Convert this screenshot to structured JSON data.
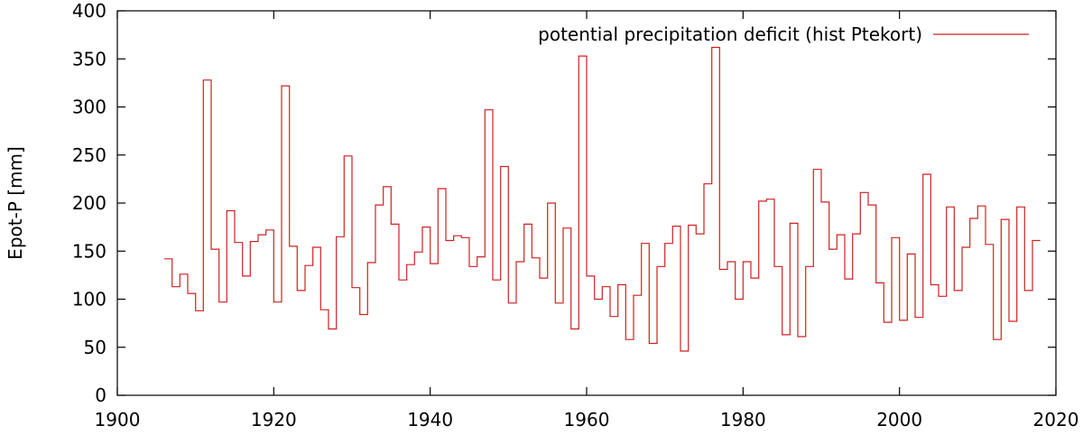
{
  "chart_data": {
    "type": "line",
    "style": "step",
    "title": "",
    "xlabel": "",
    "ylabel": "Epot-P [mm]",
    "xlim": [
      1900,
      2020
    ],
    "ylim": [
      0,
      400
    ],
    "xticks": [
      1900,
      1920,
      1940,
      1960,
      1980,
      2000,
      2020
    ],
    "yticks": [
      0,
      50,
      100,
      150,
      200,
      250,
      300,
      350,
      400
    ],
    "grid": false,
    "legend_position": "top-right",
    "series": [
      {
        "name": "potential precipitation deficit (hist Ptekort)",
        "color": "#cc2222",
        "start_year": 1906,
        "values": [
          142,
          113,
          126,
          106,
          88,
          328,
          152,
          97,
          192,
          159,
          124,
          160,
          167,
          172,
          97,
          322,
          155,
          109,
          135,
          154,
          89,
          69,
          165,
          249,
          112,
          84,
          138,
          198,
          217,
          178,
          120,
          136,
          149,
          175,
          137,
          215,
          161,
          166,
          164,
          134,
          144,
          297,
          120,
          238,
          96,
          139,
          178,
          143,
          122,
          200,
          96,
          174,
          69,
          353,
          124,
          100,
          113,
          82,
          115,
          58,
          104,
          158,
          54,
          134,
          158,
          176,
          46,
          177,
          168,
          220,
          362,
          131,
          139,
          100,
          139,
          122,
          202,
          204,
          134,
          63,
          179,
          61,
          134,
          235,
          201,
          152,
          167,
          121,
          168,
          211,
          198,
          117,
          76,
          164,
          78,
          147,
          81,
          230,
          115,
          103,
          196,
          109,
          154,
          184,
          197,
          157,
          58,
          183,
          77,
          196,
          109,
          161
        ]
      }
    ]
  }
}
